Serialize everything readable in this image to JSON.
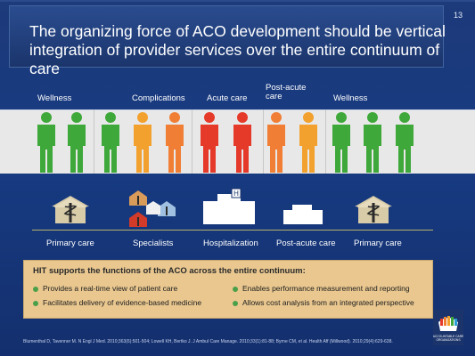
{
  "header": {
    "title": "The organizing force of ACO development should be vertical integration of provider services over the entire continuum of care",
    "slide_number": "13"
  },
  "stages": [
    {
      "label": "Wellness"
    },
    {
      "label": "Complications"
    },
    {
      "label": "Acute care"
    },
    {
      "label": "Post-acute care"
    },
    {
      "label": "Wellness"
    }
  ],
  "figure_colors": [
    "#3fa83a",
    "#3fa83a",
    "#3fa83a",
    "#f2a12e",
    "#f07f35",
    "#e53a2a",
    "#e53a2a",
    "#f07f35",
    "#f2a12e",
    "#3fa83a",
    "#3fa83a",
    "#3fa83a"
  ],
  "settings": [
    {
      "label": "Primary care",
      "icon": "medical-building-icon"
    },
    {
      "label": "Specialists",
      "icon": "specialist-offices-icon"
    },
    {
      "label": "Hospitalization",
      "icon": "hospital-icon"
    },
    {
      "label": "Post-acute care",
      "icon": "post-acute-facility-icon"
    },
    {
      "label": "Primary care",
      "icon": "medical-building-icon"
    }
  ],
  "callout": {
    "title": "HIT supports the functions of the ACO across the entire continuum:",
    "items": [
      "Provides a real-time view of patient care",
      "Facilitates delivery of evidence-based medicine",
      "Enables performance measurement and reporting",
      "Allows cost analysis from an integrated perspective"
    ]
  },
  "footer": "Blumenthal D, Tavenner  M. N Engl J Med. 2010;363(6):501-504; Lowell  KH, Bertko  J. J Ambul  Care Manage. 2010;33(1):81-88; Byrne CM, et al. Health Aff (Millwood). 2010;29(4):629-638.",
  "logo": {
    "text": "ACCOUNTABLE CARE ORGANIZATIONS"
  }
}
